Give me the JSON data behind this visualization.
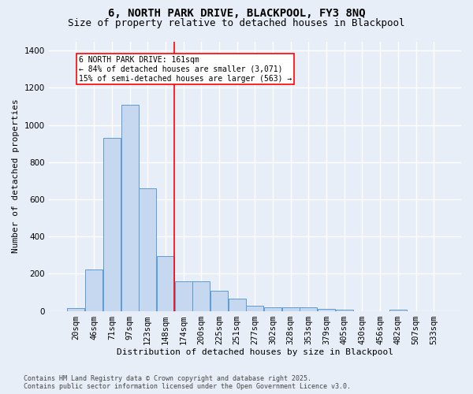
{
  "title1": "6, NORTH PARK DRIVE, BLACKPOOL, FY3 8NQ",
  "title2": "Size of property relative to detached houses in Blackpool",
  "xlabel": "Distribution of detached houses by size in Blackpool",
  "ylabel": "Number of detached properties",
  "categories": [
    "20sqm",
    "46sqm",
    "71sqm",
    "97sqm",
    "123sqm",
    "148sqm",
    "174sqm",
    "200sqm",
    "225sqm",
    "251sqm",
    "277sqm",
    "302sqm",
    "328sqm",
    "353sqm",
    "379sqm",
    "405sqm",
    "430sqm",
    "456sqm",
    "482sqm",
    "507sqm",
    "533sqm"
  ],
  "values": [
    15,
    225,
    930,
    1110,
    660,
    295,
    160,
    160,
    110,
    65,
    30,
    20,
    18,
    18,
    12,
    7,
    0,
    0,
    8,
    0,
    0
  ],
  "bar_color": "#c5d8f0",
  "bar_edge_color": "#5b9bd5",
  "background_color": "#e8eef7",
  "grid_color": "#ffffff",
  "vline_x": 5.5,
  "vline_color": "red",
  "annotation_title": "6 NORTH PARK DRIVE: 161sqm",
  "annotation_line1": "← 84% of detached houses are smaller (3,071)",
  "annotation_line2": "15% of semi-detached houses are larger (563) →",
  "footnote1": "Contains HM Land Registry data © Crown copyright and database right 2025.",
  "footnote2": "Contains public sector information licensed under the Open Government Licence v3.0.",
  "ylim": [
    0,
    1450
  ],
  "yticks": [
    0,
    200,
    400,
    600,
    800,
    1000,
    1200,
    1400
  ],
  "title_fontsize": 10,
  "subtitle_fontsize": 9,
  "axis_label_fontsize": 8,
  "tick_fontsize": 7.5,
  "annot_fontsize": 7,
  "footnote_fontsize": 6
}
